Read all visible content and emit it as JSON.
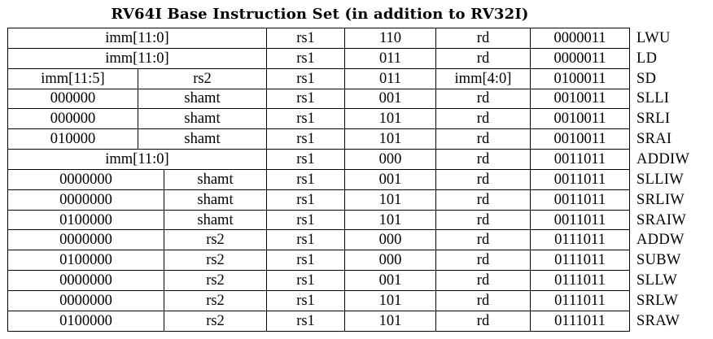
{
  "title": "RV64I Base Instruction Set (in addition to RV32I)",
  "rows": [
    {
      "f1": "imm[11:0]",
      "rs1": "rs1",
      "f3": "110",
      "rd": "rd",
      "op": "0000011",
      "name": "LWU"
    },
    {
      "f1": "imm[11:0]",
      "rs1": "rs1",
      "f3": "011",
      "rd": "rd",
      "op": "0000011",
      "name": "LD"
    },
    {
      "f1": "imm[11:5]",
      "f2": "rs2",
      "rs1": "rs1",
      "f3": "011",
      "rd": "imm[4:0]",
      "op": "0100011",
      "name": "SD"
    },
    {
      "f1": "000000",
      "f2": "shamt",
      "rs1": "rs1",
      "f3": "001",
      "rd": "rd",
      "op": "0010011",
      "name": "SLLI"
    },
    {
      "f1": "000000",
      "f2": "shamt",
      "rs1": "rs1",
      "f3": "101",
      "rd": "rd",
      "op": "0010011",
      "name": "SRLI"
    },
    {
      "f1": "010000",
      "f2": "shamt",
      "rs1": "rs1",
      "f3": "101",
      "rd": "rd",
      "op": "0010011",
      "name": "SRAI"
    },
    {
      "f1": "imm[11:0]",
      "rs1": "rs1",
      "f3": "000",
      "rd": "rd",
      "op": "0011011",
      "name": "ADDIW"
    },
    {
      "f1": "0000000",
      "f2": "shamt",
      "rs1": "rs1",
      "f3": "001",
      "rd": "rd",
      "op": "0011011",
      "name": "SLLIW"
    },
    {
      "f1": "0000000",
      "f2": "shamt",
      "rs1": "rs1",
      "f3": "101",
      "rd": "rd",
      "op": "0011011",
      "name": "SRLIW"
    },
    {
      "f1": "0100000",
      "f2": "shamt",
      "rs1": "rs1",
      "f3": "101",
      "rd": "rd",
      "op": "0011011",
      "name": "SRAIW"
    },
    {
      "f1": "0000000",
      "f2": "rs2",
      "rs1": "rs1",
      "f3": "000",
      "rd": "rd",
      "op": "0111011",
      "name": "ADDW"
    },
    {
      "f1": "0100000",
      "f2": "rs2",
      "rs1": "rs1",
      "f3": "000",
      "rd": "rd",
      "op": "0111011",
      "name": "SUBW"
    },
    {
      "f1": "0000000",
      "f2": "rs2",
      "rs1": "rs1",
      "f3": "001",
      "rd": "rd",
      "op": "0111011",
      "name": "SLLW"
    },
    {
      "f1": "0000000",
      "f2": "rs2",
      "rs1": "rs1",
      "f3": "101",
      "rd": "rd",
      "op": "0111011",
      "name": "SRLW"
    },
    {
      "f1": "0100000",
      "f2": "rs2",
      "rs1": "rs1",
      "f3": "101",
      "rd": "rd",
      "op": "0111011",
      "name": "SRAW"
    }
  ]
}
